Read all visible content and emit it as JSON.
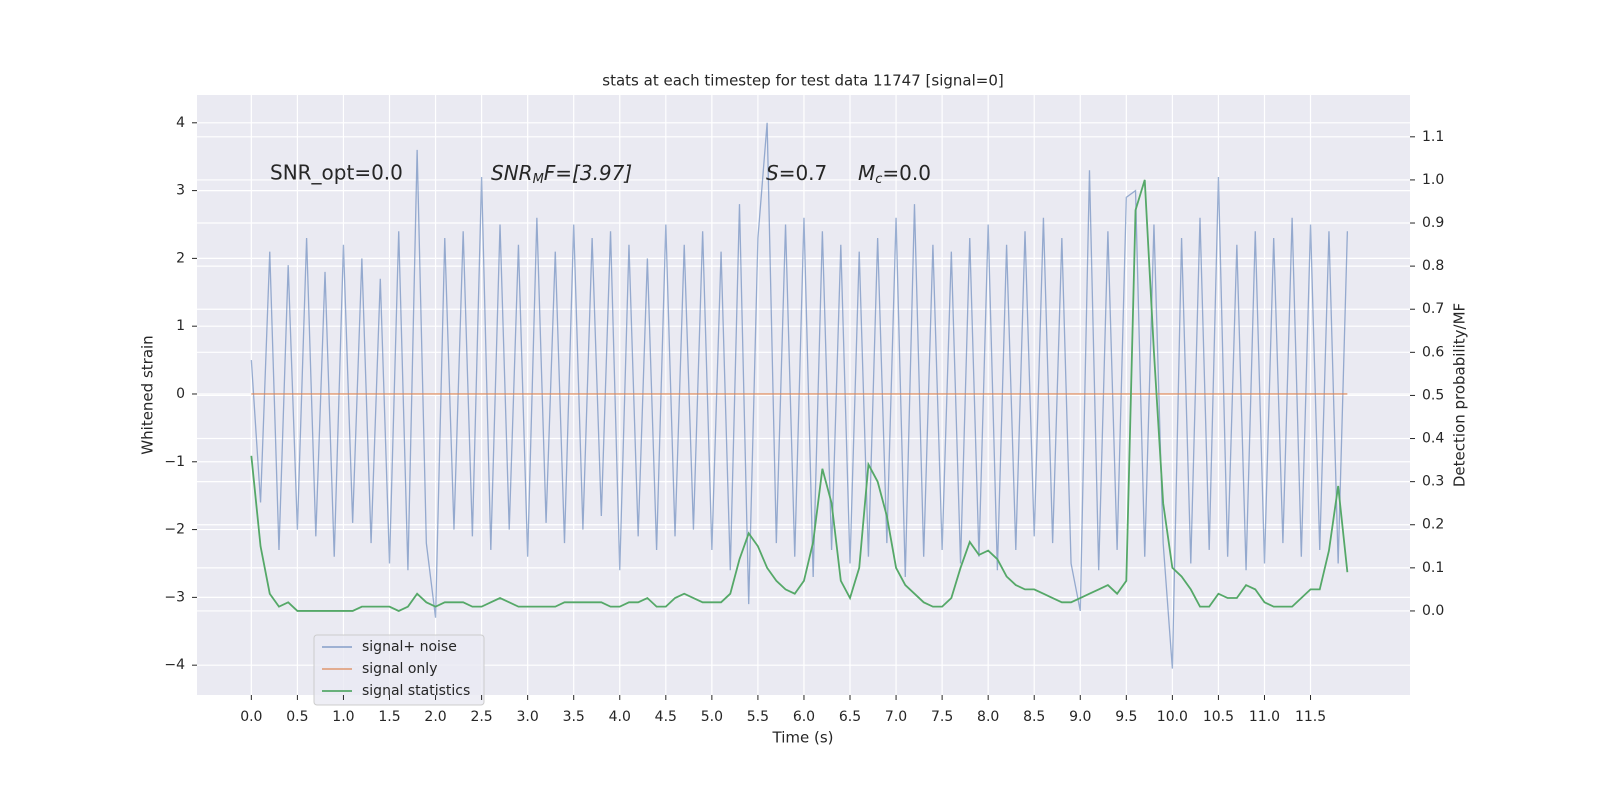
{
  "chart_data": {
    "type": "line",
    "title": "stats at each timestep for test data 11747 [signal=0]",
    "xlabel": "Time (s)",
    "ylabel": "Whitened strain",
    "y2label": "Detection probability/MF",
    "annotations": [
      {
        "text": "SNR_opt=0.0"
      },
      {
        "base": "SNR",
        "sub": "M",
        "rest": "F=[3.97]"
      },
      {
        "base": "S",
        "rest": "=0.7"
      },
      {
        "base": "M",
        "sub": "c",
        "rest": "=0.0"
      }
    ],
    "x": [
      0.0,
      0.1,
      0.2,
      0.3,
      0.4,
      0.5,
      0.6,
      0.7,
      0.8,
      0.9,
      1.0,
      1.1,
      1.2,
      1.3,
      1.4,
      1.5,
      1.6,
      1.7,
      1.8,
      1.9,
      2.0,
      2.1,
      2.2,
      2.3,
      2.4,
      2.5,
      2.6,
      2.7,
      2.8,
      2.9,
      3.0,
      3.1,
      3.2,
      3.3,
      3.4,
      3.5,
      3.6,
      3.7,
      3.8,
      3.9,
      4.0,
      4.1,
      4.2,
      4.3,
      4.4,
      4.5,
      4.6,
      4.7,
      4.8,
      4.9,
      5.0,
      5.1,
      5.2,
      5.3,
      5.4,
      5.5,
      5.6,
      5.7,
      5.8,
      5.9,
      6.0,
      6.1,
      6.2,
      6.3,
      6.4,
      6.5,
      6.6,
      6.7,
      6.8,
      6.9,
      7.0,
      7.1,
      7.2,
      7.3,
      7.4,
      7.5,
      7.6,
      7.7,
      7.8,
      7.9,
      8.0,
      8.1,
      8.2,
      8.3,
      8.4,
      8.5,
      8.6,
      8.7,
      8.8,
      8.9,
      9.0,
      9.1,
      9.2,
      9.3,
      9.4,
      9.5,
      9.6,
      9.7,
      9.8,
      9.9,
      10.0,
      10.1,
      10.2,
      10.3,
      10.4,
      10.5,
      10.6,
      10.7,
      10.8,
      10.9,
      11.0,
      11.1,
      11.2,
      11.3,
      11.4,
      11.5,
      11.6,
      11.7,
      11.8,
      11.9
    ],
    "series": [
      {
        "name": "signal+ noise",
        "color": "#4c72b0",
        "values": [
          0.5,
          -1.6,
          2.1,
          -2.3,
          1.9,
          -2.0,
          2.3,
          -2.1,
          1.8,
          -2.4,
          2.2,
          -1.9,
          2.0,
          -2.2,
          1.7,
          -2.5,
          2.4,
          -2.6,
          3.6,
          -2.2,
          -3.3,
          2.3,
          -2.0,
          2.4,
          -2.1,
          3.2,
          -2.3,
          2.5,
          -2.0,
          2.2,
          -2.4,
          2.6,
          -1.9,
          2.1,
          -2.2,
          2.5,
          -2.0,
          2.3,
          -1.8,
          2.4,
          -2.6,
          2.2,
          -2.1,
          2.0,
          -2.3,
          2.5,
          -2.1,
          2.2,
          -2.0,
          2.4,
          -2.3,
          2.1,
          -2.6,
          2.8,
          -3.1,
          2.3,
          4.0,
          -2.2,
          2.5,
          -2.4,
          2.6,
          -2.7,
          2.4,
          -2.3,
          2.2,
          -2.5,
          2.1,
          -2.4,
          2.3,
          -2.2,
          2.6,
          -2.7,
          2.8,
          -2.4,
          2.2,
          -2.3,
          2.1,
          -2.5,
          2.3,
          -2.4,
          2.5,
          -2.6,
          2.2,
          -2.3,
          2.4,
          -2.1,
          2.6,
          -2.2,
          2.3,
          -2.5,
          -3.2,
          3.3,
          -2.6,
          2.4,
          -2.3,
          2.9,
          3.0,
          -2.4,
          2.5,
          -2.2,
          -4.05,
          2.3,
          -2.5,
          2.6,
          -2.3,
          3.2,
          -2.4,
          2.2,
          -2.6,
          2.4,
          -2.5,
          2.3,
          -2.2,
          2.6,
          -2.4,
          2.5,
          -2.3,
          2.4,
          -2.5,
          2.4
        ]
      },
      {
        "name": "signal only",
        "color": "#dd8452",
        "values": [
          0,
          0,
          0,
          0,
          0,
          0,
          0,
          0,
          0,
          0,
          0,
          0,
          0,
          0,
          0,
          0,
          0,
          0,
          0,
          0,
          0,
          0,
          0,
          0,
          0,
          0,
          0,
          0,
          0,
          0,
          0,
          0,
          0,
          0,
          0,
          0,
          0,
          0,
          0,
          0,
          0,
          0,
          0,
          0,
          0,
          0,
          0,
          0,
          0,
          0,
          0,
          0,
          0,
          0,
          0,
          0,
          0,
          0,
          0,
          0,
          0,
          0,
          0,
          0,
          0,
          0,
          0,
          0,
          0,
          0,
          0,
          0,
          0,
          0,
          0,
          0,
          0,
          0,
          0,
          0,
          0,
          0,
          0,
          0,
          0,
          0,
          0,
          0,
          0,
          0,
          0,
          0,
          0,
          0,
          0,
          0,
          0,
          0,
          0,
          0,
          0,
          0,
          0,
          0,
          0,
          0,
          0,
          0,
          0,
          0,
          0,
          0,
          0,
          0,
          0,
          0,
          0,
          0,
          0,
          0
        ]
      },
      {
        "name": "signal statistics",
        "color": "#55a868",
        "axis": "y2",
        "values": [
          0.36,
          0.15,
          0.04,
          0.01,
          0.02,
          0.0,
          0.0,
          0.0,
          0.0,
          0.0,
          0.0,
          0.0,
          0.01,
          0.01,
          0.01,
          0.01,
          0.0,
          0.01,
          0.04,
          0.02,
          0.01,
          0.02,
          0.02,
          0.02,
          0.01,
          0.01,
          0.02,
          0.03,
          0.02,
          0.01,
          0.01,
          0.01,
          0.01,
          0.01,
          0.02,
          0.02,
          0.02,
          0.02,
          0.02,
          0.01,
          0.01,
          0.02,
          0.02,
          0.03,
          0.01,
          0.01,
          0.03,
          0.04,
          0.03,
          0.02,
          0.02,
          0.02,
          0.04,
          0.12,
          0.18,
          0.15,
          0.1,
          0.07,
          0.05,
          0.04,
          0.07,
          0.16,
          0.33,
          0.25,
          0.07,
          0.03,
          0.1,
          0.34,
          0.3,
          0.22,
          0.1,
          0.06,
          0.04,
          0.02,
          0.01,
          0.01,
          0.03,
          0.1,
          0.16,
          0.13,
          0.14,
          0.12,
          0.08,
          0.06,
          0.05,
          0.05,
          0.04,
          0.03,
          0.02,
          0.02,
          0.03,
          0.04,
          0.05,
          0.06,
          0.04,
          0.07,
          0.93,
          1.0,
          0.6,
          0.25,
          0.1,
          0.08,
          0.05,
          0.01,
          0.01,
          0.04,
          0.03,
          0.03,
          0.06,
          0.05,
          0.02,
          0.01,
          0.01,
          0.01,
          0.03,
          0.05,
          0.05,
          0.14,
          0.29,
          0.09
        ]
      }
    ],
    "xlim": [
      -0.59,
      12.58
    ],
    "ylim": [
      -4.44,
      4.41
    ],
    "y2lim": [
      -0.195,
      1.197
    ],
    "xticks": [
      {
        "value": 0,
        "label": "0.0"
      },
      0.5,
      {
        "value": 1,
        "label": "1.0"
      },
      1.5,
      {
        "value": 2,
        "label": "2.0"
      },
      2.5,
      {
        "value": 3,
        "label": "3.0"
      },
      3.5,
      {
        "value": 4,
        "label": "4.0"
      },
      4.5,
      {
        "value": 5,
        "label": "5.0"
      },
      5.5,
      {
        "value": 6,
        "label": "6.0"
      },
      6.5,
      {
        "value": 7,
        "label": "7.0"
      },
      7.5,
      {
        "value": 8,
        "label": "8.0"
      },
      8.5,
      {
        "value": 9,
        "label": "9.0"
      },
      9.5,
      {
        "value": 10,
        "label": "10.0"
      },
      10.5,
      {
        "value": 11,
        "label": "11.0"
      },
      11.5
    ],
    "yticks": [
      {
        "value": -4,
        "label": "−4"
      },
      {
        "value": -3,
        "label": "−3"
      },
      {
        "value": -2,
        "label": "−2"
      },
      {
        "value": -1,
        "label": "−1"
      },
      0,
      1,
      2,
      3,
      4
    ],
    "y2ticks": [
      {
        "value": 0,
        "label": "0.0"
      },
      0.1,
      0.2,
      0.3,
      0.4,
      0.5,
      0.6,
      0.7,
      0.8,
      0.9,
      {
        "value": 1,
        "label": "1.0"
      },
      1.1
    ],
    "grid": true,
    "legend": "lower left"
  }
}
